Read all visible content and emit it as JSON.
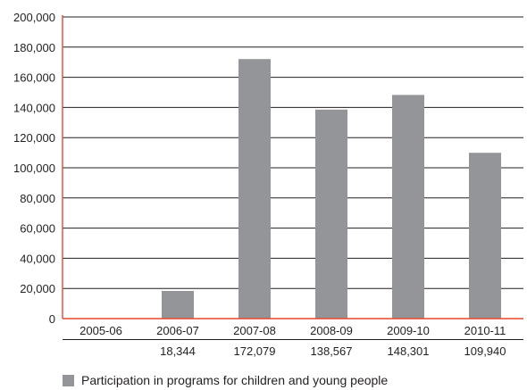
{
  "chart_data": {
    "type": "bar",
    "categories": [
      "2005-06",
      "2006-07",
      "2007-08",
      "2008-09",
      "2009-10",
      "2010-11"
    ],
    "series": [
      {
        "name": "Participation in programs for children and young people",
        "values": [
          null,
          18344,
          172079,
          138567,
          148301,
          109940
        ]
      }
    ],
    "value_labels": [
      "",
      "18,344",
      "172,079",
      "138,567",
      "148,301",
      "109,940"
    ],
    "ylim": [
      0,
      200000
    ],
    "yticks": [
      "0",
      "20,000",
      "40,000",
      "60,000",
      "80,000",
      "100,000",
      "120,000",
      "140,000",
      "160,000",
      "180,000",
      "200,000"
    ],
    "ytick_values": [
      0,
      20000,
      40000,
      60000,
      80000,
      100000,
      120000,
      140000,
      160000,
      180000,
      200000
    ],
    "grid": true,
    "legend": "bottom",
    "colors": {
      "bar": "#939598",
      "grid": "#231f20",
      "axis": "#e8472e"
    }
  }
}
